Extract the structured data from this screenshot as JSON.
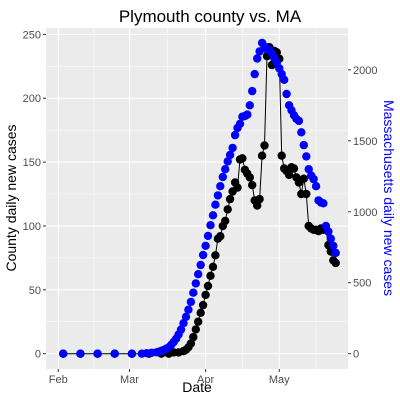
{
  "chart_data": {
    "type": "line",
    "title": "Plymouth county vs. MA",
    "xlabel": "Date",
    "ylabel": "County daily new cases",
    "y2label": "Massachusetts daily new cases",
    "x_ticks": [
      "Feb",
      "Mar",
      "Apr",
      "May"
    ],
    "x_tick_days": [
      0,
      29,
      60,
      90
    ],
    "ylim": [
      -12,
      255
    ],
    "y_ticks": [
      0,
      50,
      100,
      150,
      200,
      250
    ],
    "y2lim": [
      -108,
      2295
    ],
    "y2_ticks": [
      0,
      500,
      1000,
      1500,
      2000
    ],
    "grid": true,
    "series": [
      {
        "name": "Plymouth county daily new cases",
        "axis": "left",
        "color": "#000000",
        "line": true,
        "x": [
          "2020-02-03",
          "2020-02-10",
          "2020-02-17",
          "2020-02-24",
          "2020-03-02",
          "2020-03-09",
          "2020-03-14",
          "2020-03-17",
          "2020-03-19",
          "2020-03-21",
          "2020-03-23",
          "2020-03-24",
          "2020-03-25",
          "2020-03-26",
          "2020-03-27",
          "2020-03-28",
          "2020-03-29",
          "2020-03-30",
          "2020-03-31",
          "2020-04-01",
          "2020-04-02",
          "2020-04-03",
          "2020-04-04",
          "2020-04-05",
          "2020-04-06",
          "2020-04-07",
          "2020-04-08",
          "2020-04-09",
          "2020-04-10",
          "2020-04-11",
          "2020-04-12",
          "2020-04-13",
          "2020-04-14",
          "2020-04-15",
          "2020-04-16",
          "2020-04-17",
          "2020-04-18",
          "2020-04-19",
          "2020-04-20",
          "2020-04-21",
          "2020-04-22",
          "2020-04-23",
          "2020-04-24",
          "2020-04-25",
          "2020-04-26",
          "2020-04-27",
          "2020-04-28",
          "2020-04-29",
          "2020-04-30",
          "2020-05-01",
          "2020-05-02",
          "2020-05-03",
          "2020-05-04",
          "2020-05-05",
          "2020-05-06",
          "2020-05-07",
          "2020-05-08",
          "2020-05-09",
          "2020-05-10",
          "2020-05-11",
          "2020-05-12",
          "2020-05-13",
          "2020-05-14",
          "2020-05-15",
          "2020-05-16",
          "2020-05-17",
          "2020-05-18",
          "2020-05-19",
          "2020-05-20",
          "2020-05-21",
          "2020-05-22",
          "2020-05-23",
          "2020-05-24"
        ],
        "y": [
          0,
          0,
          0,
          0,
          0,
          0,
          0,
          0,
          1,
          1,
          2,
          3,
          5,
          8,
          13,
          19,
          25,
          32,
          38,
          46,
          53,
          61,
          68,
          77,
          90,
          92,
          100,
          104,
          113,
          121,
          127,
          134,
          130,
          152,
          153,
          144,
          141,
          138,
          132,
          120,
          116,
          121,
          155,
          163,
          233,
          240,
          226,
          237,
          236,
          231,
          155,
          145,
          143,
          140,
          146,
          145,
          138,
          134,
          125,
          137,
          125,
          100,
          98,
          97,
          97,
          96,
          98,
          97,
          98,
          85,
          80,
          73,
          71
        ]
      },
      {
        "name": "Massachusetts daily new cases",
        "axis": "right",
        "color": "#0000ff",
        "line": false,
        "x": [
          "2020-02-03",
          "2020-02-10",
          "2020-02-17",
          "2020-02-24",
          "2020-03-02",
          "2020-03-06",
          "2020-03-08",
          "2020-03-10",
          "2020-03-12",
          "2020-03-13",
          "2020-03-14",
          "2020-03-15",
          "2020-03-16",
          "2020-03-17",
          "2020-03-18",
          "2020-03-19",
          "2020-03-20",
          "2020-03-21",
          "2020-03-22",
          "2020-03-23",
          "2020-03-24",
          "2020-03-25",
          "2020-03-26",
          "2020-03-27",
          "2020-03-28",
          "2020-03-29",
          "2020-03-30",
          "2020-03-31",
          "2020-04-01",
          "2020-04-02",
          "2020-04-03",
          "2020-04-04",
          "2020-04-05",
          "2020-04-06",
          "2020-04-07",
          "2020-04-08",
          "2020-04-09",
          "2020-04-10",
          "2020-04-11",
          "2020-04-12",
          "2020-04-13",
          "2020-04-14",
          "2020-04-15",
          "2020-04-16",
          "2020-04-17",
          "2020-04-18",
          "2020-04-19",
          "2020-04-20",
          "2020-04-21",
          "2020-04-22",
          "2020-04-23",
          "2020-04-24",
          "2020-04-25",
          "2020-04-26",
          "2020-04-27",
          "2020-04-28",
          "2020-04-29",
          "2020-04-30",
          "2020-05-01",
          "2020-05-02",
          "2020-05-03",
          "2020-05-04",
          "2020-05-05",
          "2020-05-06",
          "2020-05-07",
          "2020-05-08",
          "2020-05-09",
          "2020-05-10",
          "2020-05-11",
          "2020-05-12",
          "2020-05-13",
          "2020-05-14",
          "2020-05-15",
          "2020-05-16",
          "2020-05-17",
          "2020-05-18",
          "2020-05-19",
          "2020-05-20",
          "2020-05-21",
          "2020-05-22",
          "2020-05-23",
          "2020-05-24"
        ],
        "y": [
          0,
          0,
          0,
          0,
          0,
          0,
          3,
          6,
          10,
          14,
          20,
          26,
          35,
          45,
          62,
          82,
          105,
          135,
          170,
          215,
          260,
          310,
          365,
          430,
          495,
          560,
          625,
          695,
          760,
          830,
          905,
          975,
          1050,
          1115,
          1180,
          1245,
          1300,
          1355,
          1400,
          1450,
          1540,
          1590,
          1620,
          1670,
          1675,
          1685,
          1750,
          1850,
          1970,
          2080,
          2130,
          2190,
          2165,
          2145,
          2140,
          2115,
          2085,
          2050,
          2010,
          1970,
          1930,
          1830,
          1750,
          1715,
          1680,
          1655,
          1640,
          1560,
          1470,
          1390,
          1300,
          1255,
          1230,
          1180,
          1080,
          1065,
          1060,
          900,
          860,
          810,
          760,
          710
        ]
      }
    ]
  }
}
